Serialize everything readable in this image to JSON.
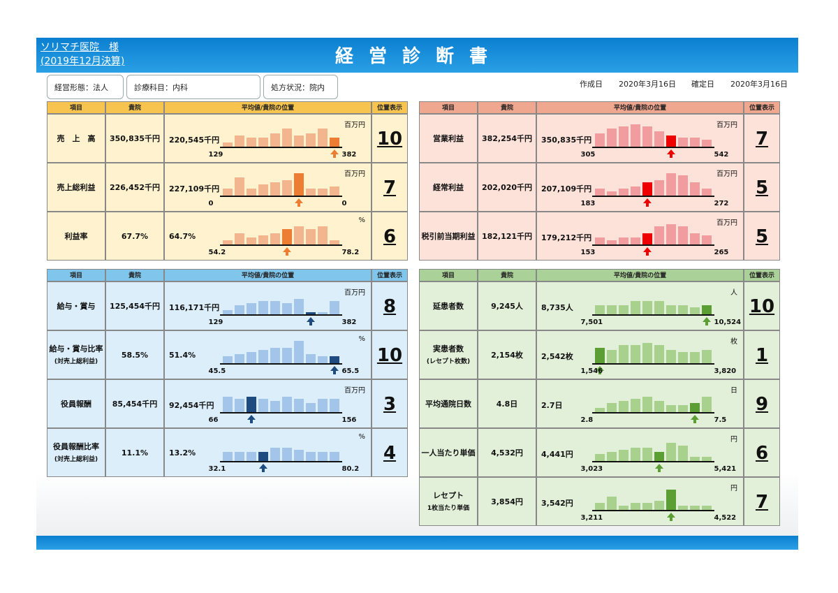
{
  "header": {
    "client": "ソリマチ医院　様",
    "period": "(2019年12月決算)",
    "title": "経営診断書"
  },
  "info": {
    "type": "経営形態：法人",
    "dept": "診療科目：内科",
    "rx": "処方状況：院内"
  },
  "dates": {
    "created_label": "作成日",
    "created": "2020年3月16日",
    "fixed_label": "確定日",
    "fixed": "2020年3月16日"
  },
  "colors": {
    "orange_hdr": "#f7c54f",
    "orange_bg": "#fff3cf",
    "orange_bar": "#f3b58d",
    "orange_hi": "#ec7d32",
    "red_hdr": "#f0a790",
    "red_bg": "#fde2da",
    "red_bar": "#f19d9f",
    "red_hi": "#ee0000",
    "blue_hdr": "#7fc5ec",
    "blue_bg": "#dbeefa",
    "blue_bar": "#a3c5ea",
    "blue_hi": "#1e4c80",
    "green_hdr": "#aad197",
    "green_bg": "#e2efd9",
    "green_bar": "#a9d18e",
    "green_hi": "#5a9e34"
  },
  "columns": {
    "item": "項目",
    "own": "貴院",
    "avg": "平均値/貴院の位置",
    "pos": "位置表示"
  },
  "chart_data": [
    {
      "panel": "tl",
      "type": "bar",
      "theme": "orange",
      "label": "売　上　高",
      "own": "350,835千円",
      "avg": "220,545千円",
      "unit": "百万円",
      "min": "129",
      "max": "382",
      "values": [
        2,
        5,
        4,
        4,
        6,
        8,
        5,
        6,
        8,
        4
      ],
      "highlight": 9,
      "arrow": 9,
      "position": "10"
    },
    {
      "panel": "tl",
      "type": "bar",
      "theme": "orange",
      "label": "売上総利益",
      "own": "226,452千円",
      "avg": "227,109千円",
      "unit": "百万円",
      "min": "0",
      "max": "0",
      "values": [
        3,
        8,
        3,
        5,
        6,
        7,
        10,
        3,
        3,
        4
      ],
      "highlight": 6,
      "arrow": 6,
      "position": "7"
    },
    {
      "panel": "tl",
      "type": "bar",
      "theme": "orange",
      "label": "利益率",
      "own": "67.7%",
      "avg": "64.7%",
      "unit": "%",
      "min": "54.2",
      "max": "78.2",
      "values": [
        2,
        5,
        3,
        4,
        5,
        7,
        8,
        7,
        8,
        2
      ],
      "highlight": 5,
      "arrow": 5,
      "position": "6"
    },
    {
      "panel": "tr",
      "type": "bar",
      "theme": "red",
      "label": "営業利益",
      "own": "382,254千円",
      "avg": "350,835千円",
      "unit": "百万円",
      "min": "305",
      "max": "542",
      "values": [
        6,
        8,
        9,
        10,
        9,
        7,
        5,
        4,
        4,
        3
      ],
      "highlight": 6,
      "arrow": 6,
      "position": "7"
    },
    {
      "panel": "tr",
      "type": "bar",
      "theme": "red",
      "label": "経常利益",
      "own": "202,020千円",
      "avg": "207,109千円",
      "unit": "百万円",
      "min": "183",
      "max": "272",
      "values": [
        3,
        2,
        3,
        4,
        6,
        7,
        10,
        9,
        6,
        3
      ],
      "highlight": 4,
      "arrow": 4,
      "position": "5"
    },
    {
      "panel": "tr",
      "type": "bar",
      "theme": "red",
      "label": "税引前当期利益",
      "own": "182,121千円",
      "avg": "179,212千円",
      "unit": "百万円",
      "min": "153",
      "max": "265",
      "values": [
        3,
        2,
        3,
        3,
        5,
        8,
        9,
        8,
        5,
        4
      ],
      "highlight": 4,
      "arrow": 4,
      "position": "5"
    },
    {
      "panel": "bl",
      "type": "bar",
      "theme": "blue",
      "label": "給与・賞与",
      "own": "125,454千円",
      "avg": "116,171千円",
      "unit": "百万円",
      "min": "129",
      "max": "382",
      "values": [
        2,
        4,
        5,
        6,
        6,
        5,
        7,
        1,
        1,
        6
      ],
      "highlight": 7,
      "arrow": 7,
      "position": "8"
    },
    {
      "panel": "bl",
      "type": "bar",
      "theme": "blue",
      "label": "給与・賞与比率\n(対売上総利益)",
      "own": "58.5%",
      "avg": "51.4%",
      "unit": "%",
      "min": "45.5",
      "max": "65.5",
      "values": [
        3,
        4,
        5,
        6,
        7,
        7,
        10,
        4,
        3,
        3
      ],
      "highlight": 9,
      "arrow": 9,
      "position": "10"
    },
    {
      "panel": "bl",
      "type": "bar",
      "theme": "blue",
      "label": "役員報酬",
      "own": "85,454千円",
      "avg": "92,454千円",
      "unit": "百万円",
      "min": "66",
      "max": "156",
      "values": [
        7,
        6,
        7,
        6,
        5,
        7,
        6,
        4,
        6,
        6
      ],
      "highlight": 2,
      "arrow": 2,
      "position": "3"
    },
    {
      "panel": "bl",
      "type": "bar",
      "theme": "blue",
      "label": "役員報酬比率\n(対売上総利益)",
      "own": "11.1%",
      "avg": "13.2%",
      "unit": "%",
      "min": "32.1",
      "max": "80.2",
      "values": [
        4,
        4,
        4,
        4,
        6,
        6,
        5,
        4,
        4,
        4
      ],
      "highlight": 3,
      "arrow": 3,
      "position": "4"
    },
    {
      "panel": "br",
      "type": "bar",
      "theme": "green",
      "label": "延患者数",
      "own": "9,245人",
      "avg": "8,735人",
      "unit": "人",
      "min": "7,501",
      "max": "10,524",
      "values": [
        4,
        4,
        4,
        6,
        6,
        6,
        4,
        4,
        3,
        4
      ],
      "highlight": 9,
      "arrow": 9,
      "position": "10"
    },
    {
      "panel": "br",
      "type": "bar",
      "theme": "green",
      "label": "実患者数\n(レセプト枚数)",
      "own": "2,154枚",
      "avg": "2,542枚",
      "unit": "枚",
      "min": "1,546",
      "max": "3,820",
      "values": [
        7,
        6,
        8,
        8,
        9,
        8,
        6,
        5,
        5,
        6
      ],
      "highlight": 0,
      "arrow": 0,
      "position": "1"
    },
    {
      "panel": "br",
      "type": "bar",
      "theme": "green",
      "label": "平均通院日数",
      "own": "4.8日",
      "avg": "2.7日",
      "unit": "日",
      "min": "2.8",
      "max": "7.5",
      "values": [
        2,
        4,
        5,
        6,
        7,
        5,
        3,
        3,
        4,
        7
      ],
      "highlight": 8,
      "arrow": 8,
      "position": "9"
    },
    {
      "panel": "br",
      "type": "bar",
      "theme": "green",
      "label": "一人当たり単価",
      "own": "4,532円",
      "avg": "4,441円",
      "unit": "円",
      "min": "3,023",
      "max": "5,421",
      "values": [
        3,
        4,
        5,
        6,
        6,
        4,
        8,
        7,
        2,
        2
      ],
      "highlight": 5,
      "arrow": 5,
      "position": "6"
    },
    {
      "panel": "br",
      "type": "bar",
      "theme": "green",
      "label": "レセプト\n1枚当たり単価",
      "own": "3,854円",
      "avg": "3,542円",
      "unit": "円",
      "min": "3,211",
      "max": "4,522",
      "values": [
        3,
        6,
        2,
        3,
        3,
        4,
        9,
        2,
        2,
        2
      ],
      "highlight": 6,
      "arrow": 6,
      "position": "7"
    }
  ]
}
